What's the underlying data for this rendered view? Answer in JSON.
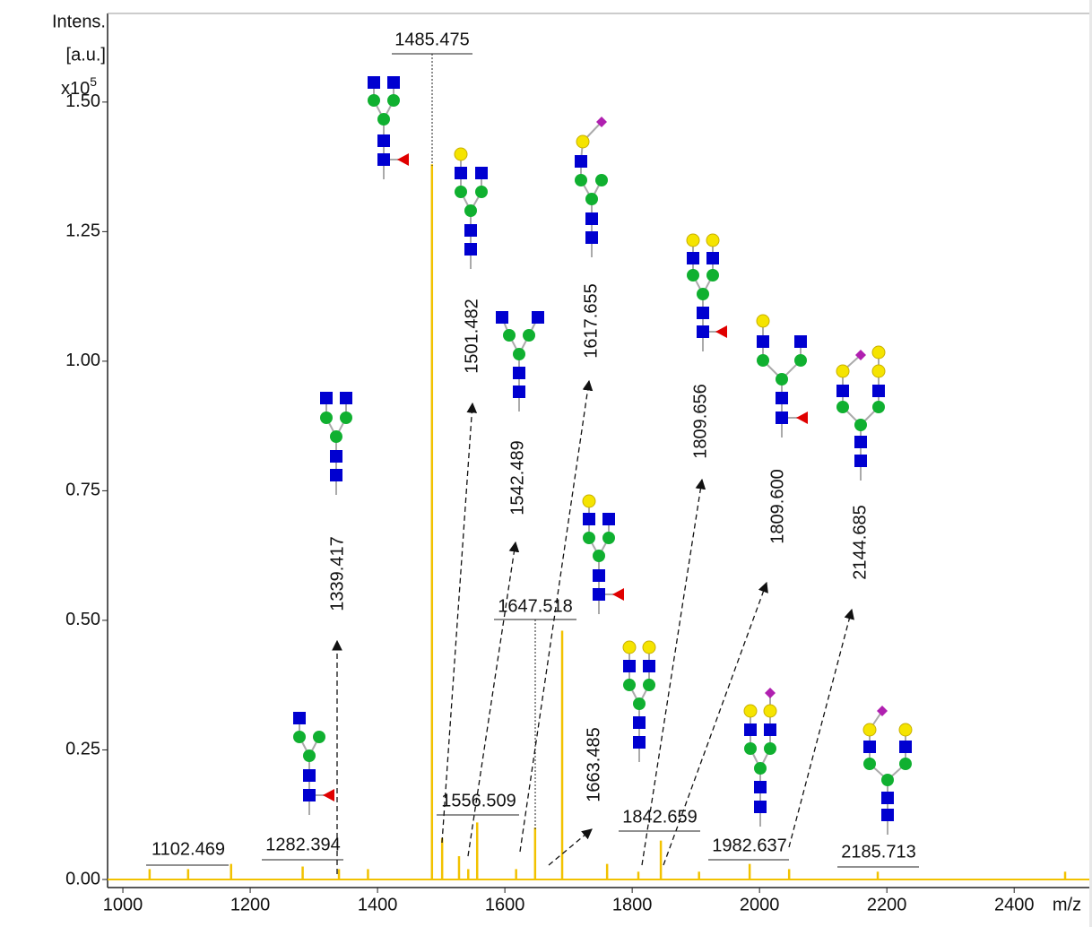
{
  "chart_data": {
    "type": "spectrum",
    "color": "#f2c200",
    "x": [
      1042,
      1102.5,
      1170,
      1282.4,
      1339.4,
      1385,
      1485.5,
      1501.5,
      1528,
      1542.5,
      1556.5,
      1617.7,
      1647.5,
      1690,
      1760.6,
      1809.7,
      1845,
      1905,
      1984.5,
      2046.5,
      2185.7,
      2480
    ],
    "values": [
      0.02,
      0.02,
      0.03,
      0.025,
      0.02,
      0.02,
      1.38,
      0.08,
      0.045,
      0.02,
      0.11,
      0.02,
      0.1,
      0.48,
      0.03,
      0.015,
      0.075,
      0.015,
      0.03,
      0.02,
      0.015,
      0.015
    ],
    "xlim": [
      976,
      2518
    ],
    "ylim": [
      -0.0156,
      1.671
    ],
    "xticks": [
      1000,
      1200,
      1400,
      1600,
      1800,
      2000,
      2200,
      2400
    ],
    "yticks": [
      {
        "value": 0,
        "label": "0.00"
      },
      {
        "value": 0.25,
        "label": "0.25"
      },
      {
        "value": 0.5,
        "label": "0.50"
      },
      {
        "value": 0.75,
        "label": "0.75"
      },
      {
        "value": 1,
        "label": "1.00"
      },
      {
        "value": 1.25,
        "label": "1.25"
      },
      {
        "value": 1.5,
        "label": "1.50"
      }
    ],
    "xlabel": "m/z",
    "ylabel": [
      "Intens.",
      "[a.u.]"
    ],
    "y_scale_base": "x10",
    "y_scale_exponent": "5",
    "peak_labels": [
      "1485.475",
      "1102.469",
      "1282.394",
      "1556.509",
      "1647.518",
      "1842.659",
      "1982.637",
      "2185.713"
    ],
    "glycan_labels": [
      "1339.417",
      "1501.482",
      "1542.489",
      "1617.655",
      "1663.485",
      "1809.656",
      "1809.600",
      "2144.685"
    ]
  }
}
